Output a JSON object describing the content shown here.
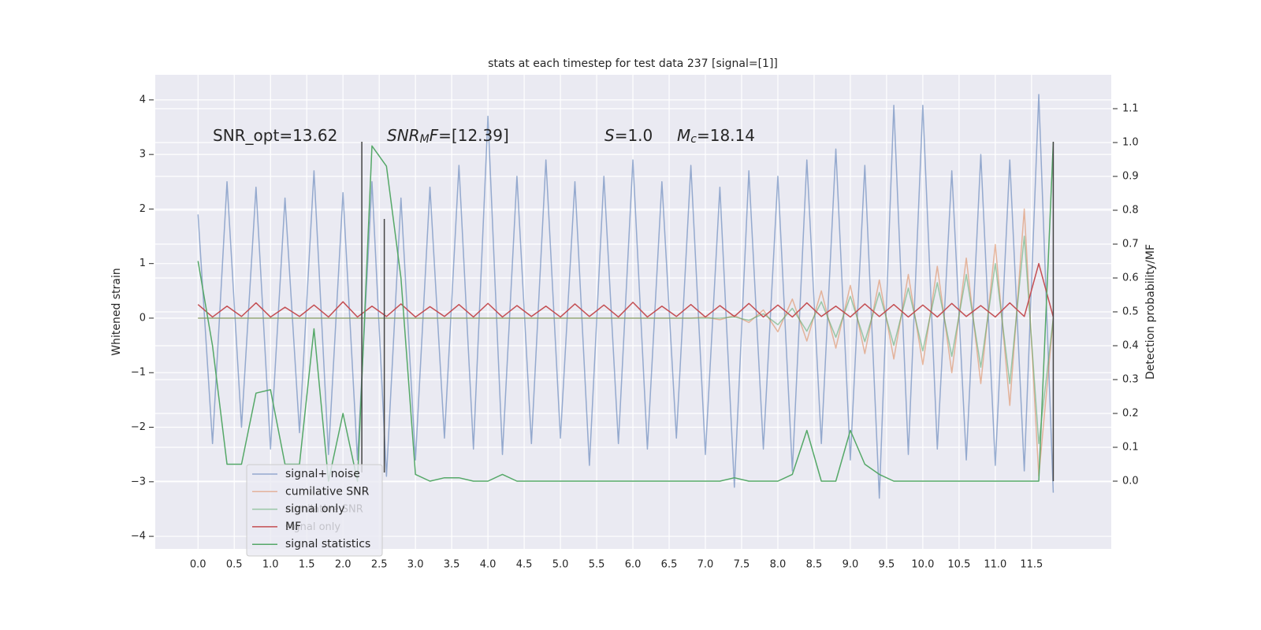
{
  "chart_data": {
    "type": "line",
    "title": "stats at each timestep for test data 237 [signal=[1]]",
    "ylabel": "Whitened strain",
    "y2label": "Detection probability/MF",
    "grid": true,
    "legend": "lower left",
    "xlim": [
      -0.59,
      12.6
    ],
    "ylim": [
      -4.23,
      4.46
    ],
    "y2lim": [
      -0.2,
      1.2
    ],
    "xticks": [
      {
        "value": 0,
        "label": "0.0"
      },
      0.5,
      {
        "value": 1,
        "label": "1.0"
      },
      1.5,
      {
        "value": 2,
        "label": "2.0"
      },
      2.5,
      {
        "value": 3,
        "label": "3.0"
      },
      3.5,
      {
        "value": 4,
        "label": "4.0"
      },
      4.5,
      {
        "value": 5,
        "label": "5.0"
      },
      5.5,
      {
        "value": 6,
        "label": "6.0"
      },
      6.5,
      {
        "value": 7,
        "label": "7.0"
      },
      7.5,
      {
        "value": 8,
        "label": "8.0"
      },
      8.5,
      {
        "value": 9,
        "label": "9.0"
      },
      9.5,
      {
        "value": 10,
        "label": "10.0"
      },
      10.5,
      {
        "value": 11,
        "label": "11.0"
      },
      11.5
    ],
    "yticks": [
      {
        "value": -4,
        "label": "−4"
      },
      {
        "value": -3,
        "label": "−3"
      },
      {
        "value": -2,
        "label": "−2"
      },
      {
        "value": -1,
        "label": "−1"
      },
      0,
      1,
      2,
      3,
      4
    ],
    "y2ticks": [
      {
        "value": 0,
        "label": "0.0"
      },
      0.1,
      0.2,
      0.3,
      0.4,
      0.5,
      0.6,
      0.7,
      0.8,
      0.9,
      {
        "value": 1,
        "label": "1.0"
      },
      1.1
    ],
    "x": [
      0,
      0.2,
      0.4,
      0.6,
      0.8,
      1.0,
      1.2,
      1.4,
      1.6,
      1.8,
      2.0,
      2.2,
      2.4,
      2.6,
      2.8,
      3.0,
      3.2,
      3.4,
      3.6,
      3.8,
      4.0,
      4.2,
      4.4,
      4.6,
      4.8,
      5.0,
      5.2,
      5.4,
      5.6,
      5.8,
      6.0,
      6.2,
      6.4,
      6.6,
      6.8,
      7.0,
      7.2,
      7.4,
      7.6,
      7.8,
      8.0,
      8.2,
      8.4,
      8.6,
      8.8,
      9.0,
      9.2,
      9.4,
      9.6,
      9.8,
      10.0,
      10.2,
      10.4,
      10.6,
      10.8,
      11.0,
      11.2,
      11.4,
      11.6,
      11.8
    ],
    "series": [
      {
        "name": "signal+ noise",
        "color": "#4c72b0",
        "alpha": 0.55,
        "axis": "y",
        "values": [
          1.9,
          -2.3,
          2.5,
          -2.0,
          2.4,
          -2.4,
          2.2,
          -2.1,
          2.7,
          -2.5,
          2.3,
          -2.6,
          2.5,
          -2.9,
          2.2,
          -2.6,
          2.4,
          -2.2,
          2.8,
          -2.4,
          3.7,
          -2.5,
          2.6,
          -2.3,
          2.9,
          -2.2,
          2.5,
          -2.7,
          2.6,
          -2.3,
          2.9,
          -2.4,
          2.5,
          -2.2,
          2.8,
          -2.5,
          2.4,
          -3.1,
          2.7,
          -2.4,
          2.6,
          -2.8,
          2.9,
          -2.3,
          3.1,
          -2.6,
          2.8,
          -3.3,
          3.9,
          -2.5,
          3.9,
          -2.4,
          2.7,
          -2.6,
          3.0,
          -2.7,
          2.9,
          -2.8,
          4.1,
          -3.2
        ]
      },
      {
        "name": "cumilative SNR",
        "color": "#dd8452",
        "alpha": 0.55,
        "axis": "y",
        "values": [
          0,
          0,
          0,
          0,
          0,
          0,
          0,
          0,
          0,
          0,
          0,
          0,
          0,
          0,
          0,
          0,
          0,
          0,
          0,
          0,
          0,
          0,
          0,
          0,
          0,
          0,
          0,
          0,
          0,
          0,
          0,
          0,
          0,
          0,
          0,
          0.02,
          -0.03,
          0.05,
          -0.08,
          0.15,
          -0.25,
          0.35,
          -0.42,
          0.5,
          -0.55,
          0.6,
          -0.65,
          0.7,
          -0.75,
          0.8,
          -0.85,
          0.95,
          -1.0,
          1.1,
          -1.2,
          1.35,
          -1.6,
          2.0,
          -2.9,
          0
        ]
      },
      {
        "name": "signal only",
        "color": "#55a868",
        "alpha": 0.55,
        "axis": "y",
        "values": [
          0,
          0,
          0,
          0,
          0,
          0,
          0,
          0,
          0,
          0,
          0,
          0,
          0,
          0,
          0,
          0,
          0,
          0,
          0,
          0,
          0,
          0,
          0,
          0,
          0,
          0,
          0,
          0,
          0,
          0,
          0,
          0,
          0,
          0,
          0,
          0,
          0,
          0.02,
          -0.04,
          0.08,
          -0.12,
          0.18,
          -0.24,
          0.3,
          -0.35,
          0.4,
          -0.43,
          0.47,
          -0.5,
          0.55,
          -0.6,
          0.65,
          -0.7,
          0.8,
          -0.9,
          1.0,
          -1.2,
          1.5,
          -2.3,
          0
        ]
      },
      {
        "name": "MF",
        "color": "#c44e52",
        "alpha": 1,
        "axis": "y",
        "values": [
          0.25,
          0.02,
          0.22,
          0.03,
          0.28,
          0.02,
          0.2,
          0.03,
          0.24,
          0.02,
          0.3,
          0.02,
          0.22,
          0.03,
          0.26,
          0.02,
          0.21,
          0.03,
          0.25,
          0.02,
          0.27,
          0.02,
          0.23,
          0.03,
          0.22,
          0.02,
          0.26,
          0.03,
          0.24,
          0.02,
          0.29,
          0.02,
          0.22,
          0.03,
          0.25,
          0.02,
          0.23,
          0.03,
          0.27,
          0.02,
          0.24,
          0.02,
          0.28,
          0.03,
          0.22,
          0.02,
          0.26,
          0.03,
          0.25,
          0.02,
          0.24,
          0.02,
          0.27,
          0.03,
          0.23,
          0.02,
          0.28,
          0.03,
          1.0,
          0.02
        ]
      },
      {
        "name": "signal statistics",
        "color": "#55a868",
        "alpha": 1,
        "axis": "y2",
        "values": [
          0.65,
          0.4,
          0.05,
          0.05,
          0.26,
          0.27,
          0.05,
          0.05,
          0.45,
          0,
          0.2,
          0,
          0.99,
          0.93,
          0.6,
          0.02,
          0,
          0.01,
          0.01,
          0,
          0,
          0.02,
          0,
          0,
          0,
          0,
          0,
          0,
          0,
          0,
          0,
          0,
          0,
          0,
          0,
          0,
          0,
          0.01,
          0,
          0,
          0,
          0.02,
          0.15,
          0,
          0,
          0.15,
          0.05,
          0.02,
          0,
          0,
          0,
          0,
          0,
          0,
          0,
          0,
          0,
          0,
          0,
          1.0
        ]
      }
    ],
    "vlines": [
      2.26,
      2.57,
      11.8
    ],
    "vline_color": "#444444",
    "annotations": [
      {
        "parts": [
          {
            "text": "SNR_opt=13.62"
          }
        ]
      },
      {
        "parts": [
          {
            "text": "SNR",
            "style": "italic"
          },
          {
            "text": "M",
            "style": "italic-sub"
          },
          {
            "text": "F",
            "style": "italic"
          },
          {
            "text": "=[12.39]"
          }
        ]
      },
      {
        "parts": [
          {
            "text": "S",
            "style": "italic"
          },
          {
            "text": "=1.0"
          }
        ]
      },
      {
        "parts": [
          {
            "text": "M",
            "style": "italic"
          },
          {
            "text": "c",
            "style": "italic-sub"
          },
          {
            "text": "=18.14"
          }
        ]
      }
    ]
  }
}
